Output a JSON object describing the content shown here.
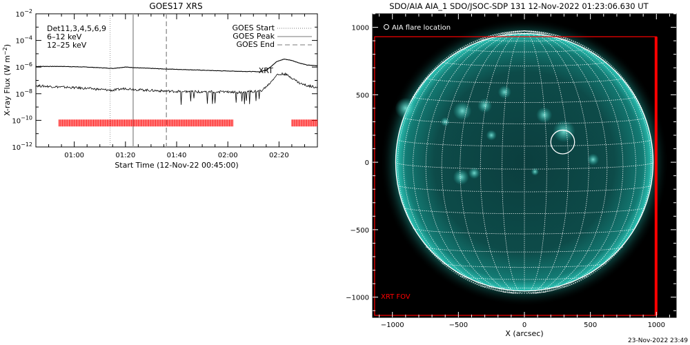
{
  "colors": {
    "axis": "#000000",
    "goes_start_line": "#9a9a9a",
    "goes_peak_line": "#9a9a9a",
    "goes_end_line": "#9a9a9a",
    "marker": "#ff0000",
    "low_channel_label": "#ff00ff",
    "high_channel_label": "#00c000",
    "fov_box": "#ff0000",
    "grid": "#ffffff",
    "sun_color": "#1fb3a8"
  },
  "chart_data": [
    {
      "type": "line",
      "title": "GOES17 XRS",
      "xlabel": "Start Time (12-Nov-22 00:45:00)",
      "ylabel": "X-ray Flux (W m⁻²)",
      "ylabel_main": "X-ray Flux (W m",
      "ylabel_exp": "−2",
      "ylabel_close": ")",
      "x_unit": "minutes after 00:45:00",
      "xlim": [
        0,
        110
      ],
      "ylog": true,
      "ylim_exp": [
        -12,
        -2
      ],
      "y_ticks": [
        {
          "exp": -12,
          "label_base": "10",
          "label_exp": "−12"
        },
        {
          "exp": -10,
          "label_base": "10",
          "label_exp": "−10"
        },
        {
          "exp": -8,
          "label_base": "10",
          "label_exp": "−8"
        },
        {
          "exp": -6,
          "label_base": "10",
          "label_exp": "−6"
        },
        {
          "exp": -4,
          "label_base": "10",
          "label_exp": "−4"
        },
        {
          "exp": -2,
          "label_base": "10",
          "label_exp": "−2"
        }
      ],
      "x_ticks": [
        {
          "t": 15,
          "label": "01:00"
        },
        {
          "t": 35,
          "label": "01:20"
        },
        {
          "t": 55,
          "label": "01:40"
        },
        {
          "t": 75,
          "label": "02:00"
        },
        {
          "t": 95,
          "label": "02:20"
        }
      ],
      "series": [
        {
          "name": "6–12 keV",
          "color": "#000000",
          "x": [
            0,
            10,
            20,
            30,
            35,
            40,
            50,
            60,
            70,
            80,
            88,
            91,
            94,
            97,
            100,
            103,
            106,
            110
          ],
          "log_flux": [
            -5.95,
            -5.95,
            -6.0,
            -6.1,
            -6.0,
            -6.06,
            -6.14,
            -6.2,
            -6.27,
            -6.32,
            -6.35,
            -6.1,
            -5.6,
            -5.4,
            -5.5,
            -5.7,
            -5.85,
            -5.9
          ]
        },
        {
          "name": "12–25 keV",
          "color": "#000000",
          "x": [
            0,
            10,
            20,
            30,
            35,
            40,
            50,
            60,
            70,
            80,
            88,
            91,
            94,
            97,
            100,
            103,
            106,
            110
          ],
          "log_flux": [
            -7.4,
            -7.5,
            -7.6,
            -7.75,
            -7.6,
            -7.7,
            -7.8,
            -7.85,
            -7.85,
            -7.9,
            -7.8,
            -7.3,
            -6.6,
            -6.5,
            -6.8,
            -7.2,
            -7.4,
            -7.5
          ]
        }
      ],
      "goes_start_t": 29,
      "goes_peak_t": 38,
      "goes_end_t": 51,
      "marker_level_exp": -10.2,
      "marker_intervals": [
        [
          9,
          77
        ],
        [
          100,
          110
        ]
      ],
      "xrt_label": "XRT",
      "legend": {
        "dets_label": "Det11,3,4,5,6,9",
        "low_label": "6–12 keV",
        "high_label": "12–25 keV",
        "start_label": "GOES Start",
        "peak_label": "GOES Peak",
        "end_label": "GOES End"
      }
    },
    {
      "type": "image",
      "title": "SDO/AIA AIA_1 SDO/JSOC-SDP 131 12-Nov-2022 01:23:06.630 UT",
      "xlabel": "X (arcsec)",
      "ylabel": "",
      "xlim": [
        -1150,
        1150
      ],
      "ylim": [
        -1150,
        1100
      ],
      "x_ticks": [
        {
          "v": -1000,
          "label": "−1000"
        },
        {
          "v": -500,
          "label": "−500"
        },
        {
          "v": 0,
          "label": "0"
        },
        {
          "v": 500,
          "label": "500"
        },
        {
          "v": 1000,
          "label": "1000"
        }
      ],
      "y_ticks": [
        {
          "v": -1000,
          "label": "−1000"
        },
        {
          "v": -500,
          "label": "−500"
        },
        {
          "v": 0,
          "label": "0"
        },
        {
          "v": 500,
          "label": "500"
        },
        {
          "v": 1000,
          "label": "1000"
        }
      ],
      "solar_radius_arcsec": 975,
      "flare_location": {
        "x": 290,
        "y": 150,
        "radius": 90
      },
      "flare_legend": "AIA flare location",
      "fov_label": "XRT FOV",
      "fov_box": {
        "x0": -1135,
        "x1": 1000,
        "y0": -1135,
        "y1": 930
      }
    }
  ],
  "footer": {
    "timestamp": "23-Nov-2022 23:49"
  }
}
